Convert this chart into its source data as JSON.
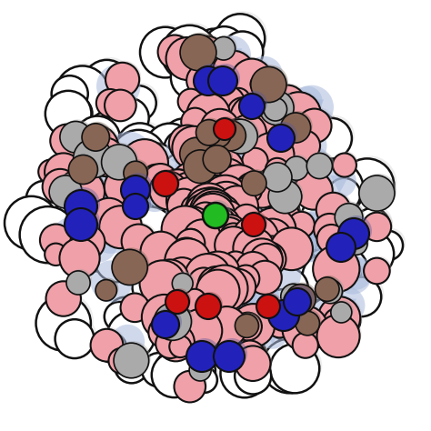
{
  "background_color": "#ffffff",
  "figsize": [
    4.74,
    4.74
  ],
  "dpi": 100,
  "colors": {
    "white": "#ffffff",
    "pink": "#f0a0a8",
    "blue": "#2222bb",
    "light_blue": "#aabbdd",
    "red": "#cc1111",
    "green": "#22bb22",
    "gray": "#aaaaaa",
    "brown": "#886655",
    "outline": "#111111"
  },
  "seed": 12345
}
